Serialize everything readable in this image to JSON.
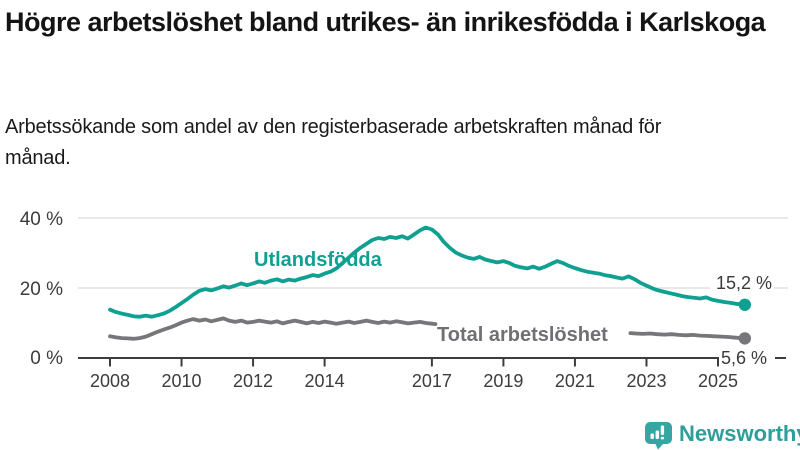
{
  "header": {
    "title": "Högre arbetslöshet bland utrikes- än inrikesfödda i Karlskoga",
    "subtitle": "Arbetssökande som andel av den registerbaserade arbetskraften månad för månad."
  },
  "footer": {
    "brand": "Newsworthy",
    "logo_icon": "newsworthy-speech-bubble-bar-chart-icon"
  },
  "colors": {
    "accent_teal": "#10a091",
    "total_gray": "#76767b",
    "total_label_gray": "#6f6f74",
    "axis": "#3d3d3d",
    "grid": "#d9d9d9",
    "logo_teal": "#35a6a1",
    "brand_text_teal": "#2f9d99",
    "text": "#141414"
  },
  "chart_data": {
    "type": "line",
    "title": "Högre arbetslöshet bland utrikes- än inrikesfödda i Karlskoga",
    "subtitle": "Arbetssökande som andel av den registerbaserade arbetskraften månad för månad.",
    "unit": "%",
    "grid": "horizontal-only",
    "legend_position": "inline-labels",
    "x_axis": {
      "tick_labels": [
        "2008",
        "2010",
        "2012",
        "2014",
        "2017",
        "2019",
        "2021",
        "2023",
        "2025"
      ],
      "tick_values": [
        2008,
        2010,
        2012,
        2014,
        2017,
        2019,
        2021,
        2023,
        2025
      ],
      "range": [
        2007.1,
        2026.9
      ]
    },
    "y_axis": {
      "tick_labels": [
        "40 %",
        "20 %",
        "0 %"
      ],
      "tick_values": [
        40,
        20,
        0
      ],
      "range": [
        0,
        40
      ]
    },
    "series": [
      {
        "id": "utlandsfodda",
        "name": "Utlandsfödda",
        "color": "#10a091",
        "end_label": "15,2 %",
        "end_value": 15.2,
        "points": [
          [
            2008.0,
            13.8
          ],
          [
            2008.17,
            13.1
          ],
          [
            2008.33,
            12.7
          ],
          [
            2008.5,
            12.3
          ],
          [
            2008.67,
            11.9
          ],
          [
            2008.83,
            11.8
          ],
          [
            2009.0,
            12.1
          ],
          [
            2009.17,
            11.8
          ],
          [
            2009.33,
            12.2
          ],
          [
            2009.5,
            12.7
          ],
          [
            2009.67,
            13.5
          ],
          [
            2009.83,
            14.5
          ],
          [
            2010.0,
            15.7
          ],
          [
            2010.17,
            16.9
          ],
          [
            2010.33,
            18.1
          ],
          [
            2010.5,
            19.2
          ],
          [
            2010.67,
            19.7
          ],
          [
            2010.83,
            19.3
          ],
          [
            2011.0,
            19.9
          ],
          [
            2011.17,
            20.5
          ],
          [
            2011.33,
            20.1
          ],
          [
            2011.5,
            20.7
          ],
          [
            2011.67,
            21.3
          ],
          [
            2011.83,
            20.8
          ],
          [
            2012.0,
            21.3
          ],
          [
            2012.17,
            21.9
          ],
          [
            2012.33,
            21.5
          ],
          [
            2012.5,
            22.1
          ],
          [
            2012.67,
            22.5
          ],
          [
            2012.83,
            21.9
          ],
          [
            2013.0,
            22.4
          ],
          [
            2013.17,
            22.1
          ],
          [
            2013.33,
            22.7
          ],
          [
            2013.5,
            23.1
          ],
          [
            2013.67,
            23.7
          ],
          [
            2013.83,
            23.4
          ],
          [
            2014.0,
            24.1
          ],
          [
            2014.17,
            24.7
          ],
          [
            2014.33,
            25.6
          ],
          [
            2014.5,
            27.1
          ],
          [
            2014.67,
            28.7
          ],
          [
            2014.83,
            30.1
          ],
          [
            2015.0,
            31.5
          ],
          [
            2015.17,
            32.6
          ],
          [
            2015.33,
            33.7
          ],
          [
            2015.5,
            34.3
          ],
          [
            2015.67,
            34.0
          ],
          [
            2015.83,
            34.6
          ],
          [
            2016.0,
            34.3
          ],
          [
            2016.17,
            34.8
          ],
          [
            2016.33,
            34.1
          ],
          [
            2016.5,
            35.3
          ],
          [
            2016.67,
            36.5
          ],
          [
            2016.83,
            37.3
          ],
          [
            2017.0,
            36.7
          ],
          [
            2017.17,
            35.3
          ],
          [
            2017.33,
            33.2
          ],
          [
            2017.5,
            31.5
          ],
          [
            2017.67,
            30.1
          ],
          [
            2017.83,
            29.3
          ],
          [
            2018.0,
            28.7
          ],
          [
            2018.17,
            28.3
          ],
          [
            2018.33,
            28.9
          ],
          [
            2018.5,
            28.1
          ],
          [
            2018.67,
            27.7
          ],
          [
            2018.83,
            27.3
          ],
          [
            2019.0,
            27.7
          ],
          [
            2019.17,
            27.1
          ],
          [
            2019.33,
            26.3
          ],
          [
            2019.5,
            25.9
          ],
          [
            2019.67,
            25.6
          ],
          [
            2019.83,
            26.1
          ],
          [
            2020.0,
            25.5
          ],
          [
            2020.17,
            26.1
          ],
          [
            2020.33,
            26.9
          ],
          [
            2020.5,
            27.7
          ],
          [
            2020.67,
            27.1
          ],
          [
            2020.83,
            26.3
          ],
          [
            2021.0,
            25.7
          ],
          [
            2021.17,
            25.1
          ],
          [
            2021.33,
            24.7
          ],
          [
            2021.5,
            24.4
          ],
          [
            2021.67,
            24.1
          ],
          [
            2021.83,
            23.7
          ],
          [
            2022.0,
            23.4
          ],
          [
            2022.17,
            23.0
          ],
          [
            2022.33,
            22.7
          ],
          [
            2022.5,
            23.3
          ],
          [
            2022.67,
            22.5
          ],
          [
            2022.83,
            21.5
          ],
          [
            2023.0,
            20.7
          ],
          [
            2023.17,
            19.9
          ],
          [
            2023.33,
            19.3
          ],
          [
            2023.5,
            18.9
          ],
          [
            2023.67,
            18.5
          ],
          [
            2023.83,
            18.1
          ],
          [
            2024.0,
            17.7
          ],
          [
            2024.17,
            17.4
          ],
          [
            2024.33,
            17.2
          ],
          [
            2024.5,
            17.0
          ],
          [
            2024.67,
            17.3
          ],
          [
            2024.83,
            16.7
          ],
          [
            2025.0,
            16.3
          ],
          [
            2025.17,
            16.0
          ],
          [
            2025.33,
            15.8
          ],
          [
            2025.5,
            15.5
          ],
          [
            2025.75,
            15.2
          ]
        ]
      },
      {
        "id": "total",
        "name": "Total arbetslöshet",
        "color": "#76767b",
        "end_label": "5,6 %",
        "end_value": 5.6,
        "segments": [
          [
            [
              2008.0,
              6.2
            ],
            [
              2008.17,
              5.9
            ],
            [
              2008.33,
              5.7
            ],
            [
              2008.5,
              5.6
            ],
            [
              2008.67,
              5.5
            ],
            [
              2008.83,
              5.7
            ],
            [
              2009.0,
              6.1
            ],
            [
              2009.17,
              6.8
            ],
            [
              2009.33,
              7.5
            ],
            [
              2009.5,
              8.1
            ],
            [
              2009.67,
              8.7
            ],
            [
              2009.83,
              9.3
            ],
            [
              2010.0,
              10.1
            ],
            [
              2010.17,
              10.7
            ],
            [
              2010.33,
              11.1
            ],
            [
              2010.5,
              10.7
            ],
            [
              2010.67,
              11.0
            ],
            [
              2010.83,
              10.5
            ],
            [
              2011.0,
              10.9
            ],
            [
              2011.17,
              11.3
            ],
            [
              2011.33,
              10.7
            ],
            [
              2011.5,
              10.3
            ],
            [
              2011.67,
              10.7
            ],
            [
              2011.83,
              10.1
            ],
            [
              2012.0,
              10.3
            ],
            [
              2012.17,
              10.7
            ],
            [
              2012.33,
              10.4
            ],
            [
              2012.5,
              10.1
            ],
            [
              2012.67,
              10.5
            ],
            [
              2012.83,
              9.9
            ],
            [
              2013.0,
              10.3
            ],
            [
              2013.17,
              10.7
            ],
            [
              2013.33,
              10.3
            ],
            [
              2013.5,
              9.9
            ],
            [
              2013.67,
              10.3
            ],
            [
              2013.83,
              10.0
            ],
            [
              2014.0,
              10.4
            ],
            [
              2014.17,
              10.1
            ],
            [
              2014.33,
              9.8
            ],
            [
              2014.5,
              10.1
            ],
            [
              2014.67,
              10.4
            ],
            [
              2014.83,
              10.0
            ],
            [
              2015.0,
              10.3
            ],
            [
              2015.17,
              10.7
            ],
            [
              2015.33,
              10.3
            ],
            [
              2015.5,
              10.0
            ],
            [
              2015.67,
              10.4
            ],
            [
              2015.83,
              10.1
            ],
            [
              2016.0,
              10.5
            ],
            [
              2016.17,
              10.2
            ],
            [
              2016.33,
              9.9
            ],
            [
              2016.5,
              10.1
            ],
            [
              2016.67,
              10.3
            ],
            [
              2016.83,
              10.0
            ],
            [
              2017.0,
              9.8
            ],
            [
              2017.1,
              9.7
            ]
          ],
          [
            [
              2022.55,
              7.1
            ],
            [
              2022.7,
              7.0
            ],
            [
              2022.9,
              6.9
            ],
            [
              2023.1,
              7.0
            ],
            [
              2023.3,
              6.8
            ],
            [
              2023.5,
              6.7
            ],
            [
              2023.7,
              6.8
            ],
            [
              2023.9,
              6.6
            ],
            [
              2024.1,
              6.5
            ],
            [
              2024.3,
              6.6
            ],
            [
              2024.5,
              6.4
            ],
            [
              2024.7,
              6.3
            ],
            [
              2024.9,
              6.2
            ],
            [
              2025.1,
              6.1
            ],
            [
              2025.3,
              6.0
            ],
            [
              2025.5,
              5.8
            ],
            [
              2025.75,
              5.6
            ]
          ]
        ]
      }
    ]
  }
}
